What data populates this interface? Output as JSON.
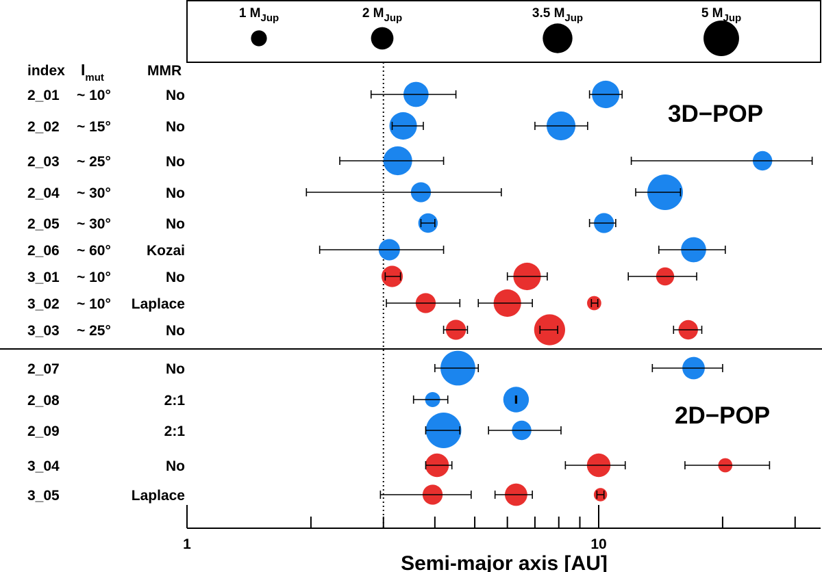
{
  "chart_data": {
    "type": "scatter",
    "xscale": "log",
    "xlim": [
      1,
      35
    ],
    "xlabel": "Semi-major axis [AU]",
    "x_tick_labels": [
      {
        "value": 1,
        "label": "1"
      },
      {
        "value": 10,
        "label": "10"
      }
    ],
    "x_minor_ticks": [
      2,
      3,
      4,
      5,
      6,
      7,
      8,
      9,
      20,
      30
    ],
    "reference_line": {
      "x": 3,
      "style": "dotted"
    },
    "colors": {
      "3D": "#1b85ee",
      "2D": "#1b85ee",
      "three_planet": "#e8302e",
      "axis": "#000000"
    },
    "mass_legend": [
      {
        "value": "1",
        "unit": "M",
        "sub": "Jup",
        "mass": 1
      },
      {
        "value": "2",
        "unit": "M",
        "sub": "Jup",
        "mass": 2
      },
      {
        "value": "3.5",
        "unit": "M",
        "sub": "Jup",
        "mass": 3.5
      },
      {
        "value": "5",
        "unit": "M",
        "sub": "Jup",
        "mass": 5
      }
    ],
    "column_headers": {
      "index": "index",
      "imut": "I",
      "imut_sub": "mut",
      "mmr": "MMR"
    },
    "group_labels": [
      "3D−POP",
      "2D−POP"
    ],
    "systems": [
      {
        "index": "2_01",
        "imut": "~ 10°",
        "mmr": "No",
        "color": "blue",
        "planets": [
          {
            "a": 3.6,
            "lo": 2.8,
            "hi": 4.5,
            "mass": 2.5
          },
          {
            "a": 10.4,
            "lo": 9.5,
            "hi": 11.4,
            "mass": 3.0
          }
        ]
      },
      {
        "index": "2_02",
        "imut": "~ 15°",
        "mmr": "No",
        "color": "blue",
        "planets": [
          {
            "a": 3.35,
            "lo": 3.15,
            "hi": 3.75,
            "mass": 3.0
          },
          {
            "a": 8.1,
            "lo": 7.0,
            "hi": 9.4,
            "mass": 3.3
          }
        ]
      },
      {
        "index": "2_03",
        "imut": "~ 25°",
        "mmr": "No",
        "color": "blue",
        "planets": [
          {
            "a": 3.25,
            "lo": 2.35,
            "hi": 4.2,
            "mass": 3.3
          },
          {
            "a": 25.0,
            "lo": 12.0,
            "hi": 33.0,
            "mass": 1.5
          }
        ]
      },
      {
        "index": "2_04",
        "imut": "~ 30°",
        "mmr": "No",
        "color": "blue",
        "planets": [
          {
            "a": 3.7,
            "lo": 1.95,
            "hi": 5.8,
            "mass": 1.6
          },
          {
            "a": 14.5,
            "lo": 12.3,
            "hi": 15.8,
            "mass": 5.0
          }
        ]
      },
      {
        "index": "2_05",
        "imut": "~ 30°",
        "mmr": "No",
        "color": "blue",
        "planets": [
          {
            "a": 3.85,
            "lo": 3.7,
            "hi": 4.0,
            "mass": 1.5
          },
          {
            "a": 10.3,
            "lo": 9.5,
            "hi": 11.0,
            "mass": 1.6
          }
        ]
      },
      {
        "index": "2_06",
        "imut": "~ 60°",
        "mmr": "Kozai",
        "color": "blue",
        "planets": [
          {
            "a": 3.1,
            "lo": 2.1,
            "hi": 4.2,
            "mass": 1.8
          },
          {
            "a": 17.0,
            "lo": 14.0,
            "hi": 20.3,
            "mass": 2.5
          }
        ]
      },
      {
        "index": "3_01",
        "imut": "~ 10°",
        "mmr": "No",
        "color": "red",
        "planets": [
          {
            "a": 3.15,
            "lo": 3.03,
            "hi": 3.3,
            "mass": 1.8
          },
          {
            "a": 6.7,
            "lo": 6.0,
            "hi": 7.5,
            "mass": 3.0
          },
          {
            "a": 14.5,
            "lo": 11.8,
            "hi": 17.3,
            "mass": 1.3
          }
        ]
      },
      {
        "index": "3_02",
        "imut": "~ 10°",
        "mmr": "Laplace",
        "color": "red",
        "planets": [
          {
            "a": 3.8,
            "lo": 3.05,
            "hi": 4.6,
            "mass": 1.6
          },
          {
            "a": 6.0,
            "lo": 5.1,
            "hi": 6.9,
            "mass": 3.0
          },
          {
            "a": 9.75,
            "lo": 9.6,
            "hi": 9.95,
            "mass": 0.8
          }
        ]
      },
      {
        "index": "3_03",
        "imut": "~ 25°",
        "mmr": "No",
        "color": "red",
        "planets": [
          {
            "a": 4.5,
            "lo": 4.2,
            "hi": 4.8,
            "mass": 1.6
          },
          {
            "a": 7.6,
            "lo": 7.2,
            "hi": 7.95,
            "mass": 3.8
          },
          {
            "a": 16.5,
            "lo": 15.2,
            "hi": 17.8,
            "mass": 1.5
          }
        ]
      },
      {
        "index": "2_07",
        "imut": "",
        "mmr": "No",
        "color": "blue",
        "planets": [
          {
            "a": 4.55,
            "lo": 4.0,
            "hi": 5.1,
            "mass": 4.8
          },
          {
            "a": 17.0,
            "lo": 13.5,
            "hi": 20.0,
            "mass": 2.0
          }
        ]
      },
      {
        "index": "2_08",
        "imut": "",
        "mmr": "2:1",
        "color": "blue",
        "planets": [
          {
            "a": 3.95,
            "lo": 3.55,
            "hi": 4.3,
            "mass": 0.9
          },
          {
            "a": 6.3,
            "lo": 6.28,
            "hi": 6.32,
            "mass": 2.6
          }
        ]
      },
      {
        "index": "2_09",
        "imut": "",
        "mmr": "2:1",
        "color": "blue",
        "planets": [
          {
            "a": 4.2,
            "lo": 3.8,
            "hi": 4.6,
            "mass": 5.0
          },
          {
            "a": 6.5,
            "lo": 5.4,
            "hi": 8.1,
            "mass": 1.5
          }
        ]
      },
      {
        "index": "3_04",
        "imut": "",
        "mmr": "No",
        "color": "red",
        "planets": [
          {
            "a": 4.05,
            "lo": 3.8,
            "hi": 4.4,
            "mass": 2.2
          },
          {
            "a": 10.0,
            "lo": 8.3,
            "hi": 11.6,
            "mass": 2.2
          },
          {
            "a": 20.3,
            "lo": 16.2,
            "hi": 26.0,
            "mass": 0.8
          }
        ]
      },
      {
        "index": "3_05",
        "imut": "",
        "mmr": "Laplace",
        "color": "red",
        "planets": [
          {
            "a": 3.95,
            "lo": 2.95,
            "hi": 4.9,
            "mass": 1.6
          },
          {
            "a": 6.3,
            "lo": 5.6,
            "hi": 6.9,
            "mass": 2.0
          },
          {
            "a": 10.1,
            "lo": 9.9,
            "hi": 10.3,
            "mass": 0.7
          }
        ]
      }
    ]
  }
}
